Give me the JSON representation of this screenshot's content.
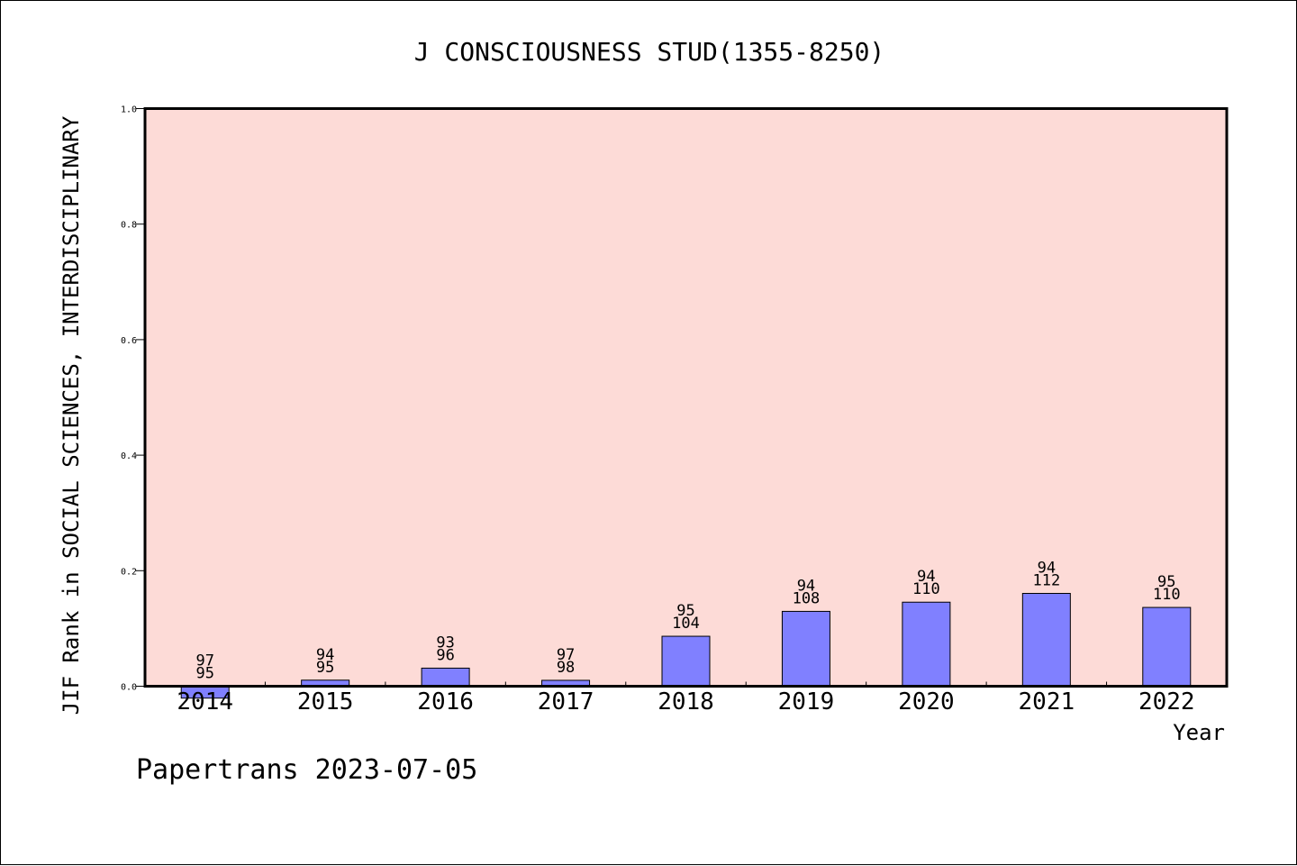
{
  "chart_data": {
    "type": "bar",
    "title": "J CONSCIOUSNESS STUD(1355-8250)",
    "xlabel": "Year",
    "ylabel": "JIF Rank in SOCIAL SCIENCES, INTERDISCIPLINARY",
    "ylim": [
      0.0,
      1.0
    ],
    "yticks": [
      "0.0",
      "0.2",
      "0.4",
      "0.6",
      "0.8",
      "1.0"
    ],
    "ytick_values": [
      0.0,
      0.2,
      0.4,
      0.6,
      0.8,
      1.0
    ],
    "categories": [
      "2014",
      "2015",
      "2016",
      "2017",
      "2018",
      "2019",
      "2020",
      "2021",
      "2022"
    ],
    "values": [
      -0.0206,
      0.0105,
      0.0313,
      0.0102,
      0.0865,
      0.1296,
      0.1455,
      0.1607,
      0.1364
    ],
    "rank_labels": [
      "97",
      "94",
      "93",
      "97",
      "95",
      "94",
      "94",
      "94",
      "95"
    ],
    "total_labels": [
      "95",
      "95",
      "96",
      "98",
      "104",
      "108",
      "110",
      "112",
      "110"
    ],
    "grid": false,
    "colors": {
      "plot_background": "#fddbd7",
      "bar_fill": "#8080ff",
      "bar_stroke": "#000000"
    }
  },
  "footer": {
    "text": "Papertrans 2023-07-05"
  }
}
